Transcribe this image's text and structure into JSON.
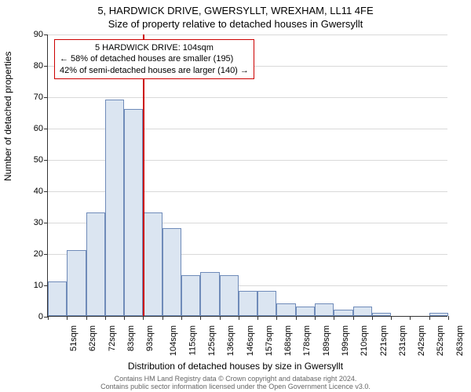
{
  "chart": {
    "type": "histogram",
    "title_line1": "5, HARDWICK DRIVE, GWERSYLLT, WREXHAM, LL11 4FE",
    "title_line2": "Size of property relative to detached houses in Gwersyllt",
    "title_fontsize": 13,
    "y_axis_label": "Number of detached properties",
    "x_axis_label": "Distribution of detached houses by size in Gwersyllt",
    "axis_label_fontsize": 12,
    "tick_fontsize": 11,
    "background_color": "#ffffff",
    "grid_color": "#d9d9d9",
    "axis_color": "#333333",
    "bar_fill": "#dbe5f1",
    "bar_stroke": "#6f8bb9",
    "reference_line_color": "#cc0000",
    "reference_line_x": 104,
    "ylim": [
      0,
      90
    ],
    "ytick_step": 10,
    "categories": [
      "51sqm",
      "62sqm",
      "72sqm",
      "83sqm",
      "93sqm",
      "104sqm",
      "115sqm",
      "125sqm",
      "136sqm",
      "146sqm",
      "157sqm",
      "168sqm",
      "178sqm",
      "189sqm",
      "199sqm",
      "210sqm",
      "221sqm",
      "231sqm",
      "242sqm",
      "252sqm",
      "263sqm"
    ],
    "values": [
      11,
      21,
      33,
      69,
      66,
      33,
      28,
      13,
      14,
      13,
      8,
      8,
      4,
      3,
      4,
      2,
      3,
      1,
      0,
      0,
      1
    ],
    "annotation": {
      "line1": "5 HARDWICK DRIVE: 104sqm",
      "line2": "← 58% of detached houses are smaller (195)",
      "line3": "42% of semi-detached houses are larger (140) →",
      "border_color": "#cc0000",
      "background": "#ffffff"
    },
    "footer_line1": "Contains HM Land Registry data © Crown copyright and database right 2024.",
    "footer_line2": "Contains public sector information licensed under the Open Government Licence v3.0.",
    "footer_color": "#666666",
    "footer_fontsize": 9
  }
}
